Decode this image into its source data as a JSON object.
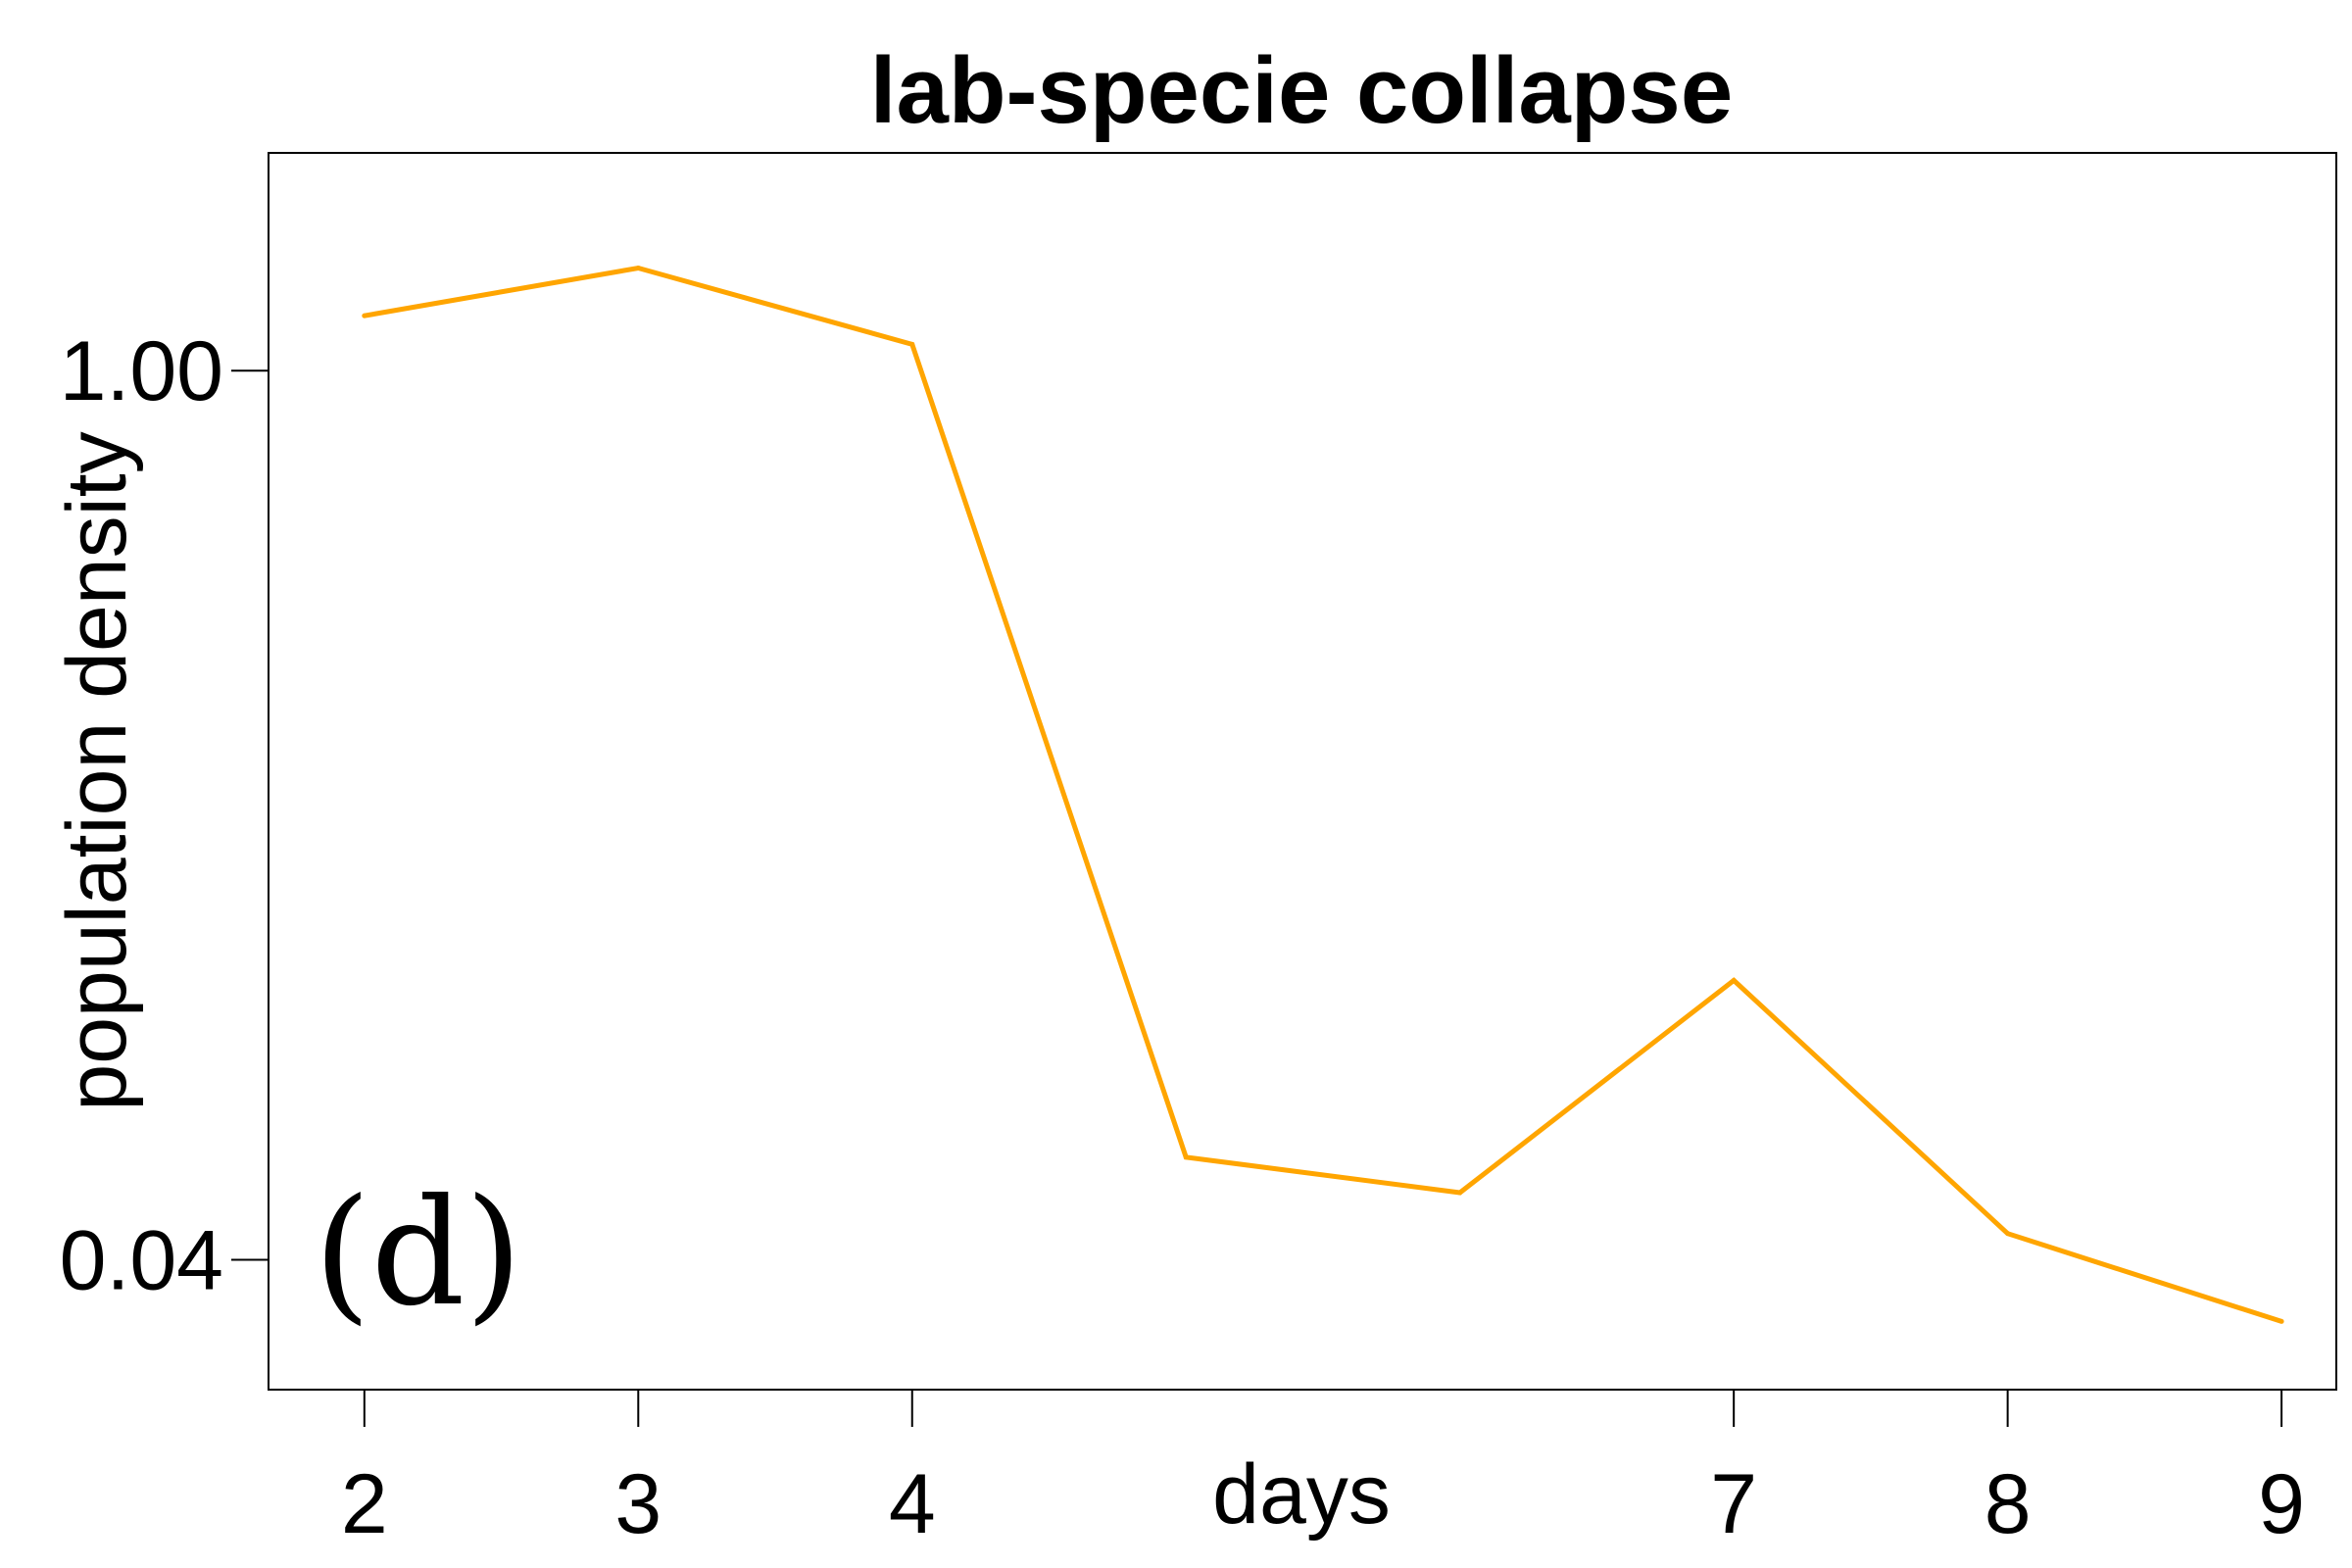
{
  "chart_data": {
    "type": "line",
    "title": "lab-specie collapse",
    "xlabel": "days",
    "ylabel": "population density",
    "panel_label": "(d)",
    "x": [
      2,
      3,
      4,
      5,
      6,
      7,
      8,
      9
    ],
    "y_scale": "log",
    "series": [
      {
        "values": [
          1.22,
          1.45,
          1.1,
          0.058,
          0.051,
          0.11,
          0.044,
          0.032
        ]
      }
    ],
    "x_ticks": [
      {
        "value": 2,
        "label": "2"
      },
      {
        "value": 3,
        "label": "3"
      },
      {
        "value": 4,
        "label": "4"
      },
      {
        "value": 7,
        "label": "7"
      },
      {
        "value": 8,
        "label": "8"
      },
      {
        "value": 9,
        "label": "9"
      }
    ],
    "y_ticks": [
      {
        "value": 1.0,
        "label": "1.00"
      },
      {
        "value": 0.04,
        "label": "0.04"
      }
    ],
    "xlim": [
      1.65,
      9.2
    ],
    "ylim": [
      0.025,
      2.2
    ],
    "grid": false,
    "line_color": "#FFA500"
  }
}
